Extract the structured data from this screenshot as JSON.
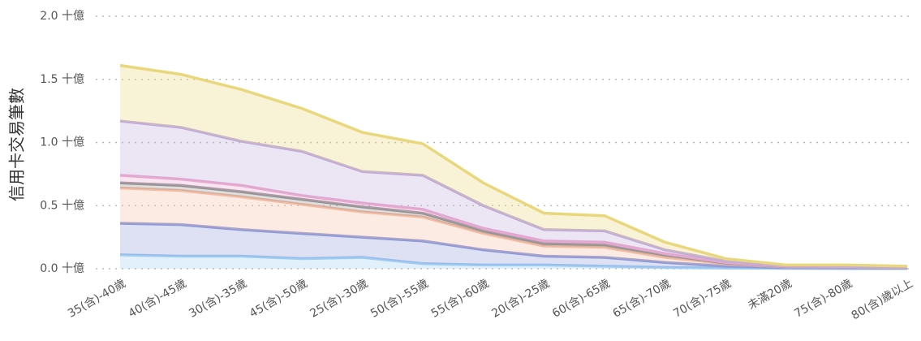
{
  "chart_data": {
    "type": "stacked_area",
    "y_label": "信用卡交易筆數",
    "categories": [
      "35(含)-40歲",
      "40(含)-45歲",
      "30(含)-35歲",
      "45(含)-50歲",
      "25(含)-30歲",
      "50(含)-55歲",
      "55(含)-60歲",
      "20(含)-25歲",
      "60(含)-65歲",
      "65(含)-70歲",
      "70(含)-75歲",
      "未滿20歲",
      "75(含)-80歲",
      "80(含)歲以上"
    ],
    "series": [
      {
        "color": "#9fcdf3",
        "values": [
          0.11,
          0.1,
          0.1,
          0.08,
          0.09,
          0.04,
          0.03,
          0.03,
          0.02,
          0.01,
          0.005,
          0.003,
          0.002,
          0.002
        ]
      },
      {
        "color": "#8e9bd8",
        "values": [
          0.25,
          0.25,
          0.21,
          0.2,
          0.16,
          0.18,
          0.12,
          0.07,
          0.07,
          0.04,
          0.015,
          0.005,
          0.005,
          0.003
        ]
      },
      {
        "color": "#f5bca3",
        "values": [
          0.28,
          0.27,
          0.26,
          0.23,
          0.2,
          0.19,
          0.13,
          0.08,
          0.08,
          0.04,
          0.02,
          0.007,
          0.007,
          0.005
        ]
      },
      {
        "color": "#959595",
        "values": [
          0.04,
          0.04,
          0.04,
          0.04,
          0.04,
          0.03,
          0.02,
          0.02,
          0.02,
          0.02,
          0.005,
          0.003,
          0.002,
          0.002
        ]
      },
      {
        "color": "#eaa8cf",
        "values": [
          0.06,
          0.05,
          0.05,
          0.03,
          0.03,
          0.03,
          0.02,
          0.02,
          0.02,
          0.01,
          0.005,
          0.002,
          0.002,
          0.001
        ]
      },
      {
        "color": "#c0abdb",
        "values": [
          0.43,
          0.41,
          0.35,
          0.35,
          0.25,
          0.27,
          0.18,
          0.09,
          0.09,
          0.03,
          0.01,
          0.005,
          0.002,
          0.002
        ]
      },
      {
        "color": "#e9d77c",
        "values": [
          0.44,
          0.42,
          0.41,
          0.34,
          0.31,
          0.25,
          0.18,
          0.13,
          0.12,
          0.06,
          0.02,
          0.005,
          0.01,
          0.005
        ]
      }
    ],
    "ylim": [
      0,
      2
    ],
    "yticks": [
      {
        "value": 0,
        "label": "0.0 十億"
      },
      {
        "value": 0.5,
        "label": "0.5 十億"
      },
      {
        "value": 1,
        "label": "1.0 十億"
      },
      {
        "value": 1.5,
        "label": "1.5 十億"
      },
      {
        "value": 2,
        "label": "2.0 十億"
      }
    ],
    "grid": true
  }
}
